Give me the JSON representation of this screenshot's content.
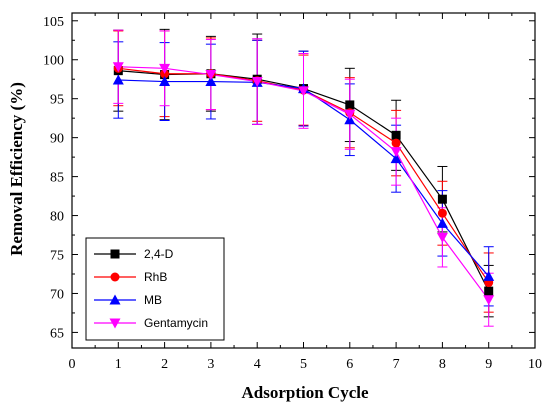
{
  "chart_data": {
    "type": "line",
    "xlabel": "Adsorption Cycle",
    "ylabel": "Removal Efficiency (%)",
    "xlim": [
      0,
      10
    ],
    "ylim": [
      63,
      106
    ],
    "xticks": [
      0,
      1,
      2,
      3,
      4,
      5,
      6,
      7,
      8,
      9,
      10
    ],
    "yticks": [
      65,
      70,
      75,
      80,
      85,
      90,
      95,
      100,
      105
    ],
    "grid": false,
    "legend_position": "bottom-left",
    "error_bars": true,
    "x": [
      1,
      2,
      3,
      4,
      5,
      6,
      7,
      8,
      9
    ],
    "series": [
      {
        "name": "2,4-D",
        "marker": "square",
        "color": "#000000",
        "values": [
          98.6,
          98.1,
          98.2,
          97.5,
          96.3,
          94.2,
          90.3,
          82.1,
          70.3
        ],
        "errors": [
          5.2,
          5.8,
          4.8,
          5.8,
          4.8,
          4.7,
          4.5,
          4.2,
          3.3
        ]
      },
      {
        "name": "RhB",
        "marker": "circle",
        "color": "#ff0000",
        "values": [
          98.9,
          98.2,
          98.2,
          97.3,
          96.1,
          93.2,
          89.3,
          80.3,
          71.4
        ],
        "errors": [
          4.8,
          5.5,
          4.6,
          5.2,
          4.5,
          4.5,
          4.2,
          4.1,
          3.8
        ]
      },
      {
        "name": "MB",
        "marker": "triangle",
        "color": "#0000ff",
        "values": [
          97.4,
          97.2,
          97.2,
          97.1,
          96.3,
          92.3,
          87.3,
          79.0,
          72.2
        ],
        "errors": [
          4.9,
          5.0,
          4.8,
          5.4,
          4.8,
          4.6,
          4.3,
          4.2,
          3.8
        ]
      },
      {
        "name": "Gentamycin",
        "marker": "triangle-down",
        "color": "#ff00ff",
        "values": [
          99.1,
          98.9,
          98.1,
          97.2,
          96.0,
          93.0,
          88.2,
          77.2,
          69.2
        ],
        "errors": [
          4.7,
          4.8,
          4.5,
          5.5,
          4.8,
          4.5,
          4.3,
          3.8,
          3.4
        ]
      }
    ]
  }
}
